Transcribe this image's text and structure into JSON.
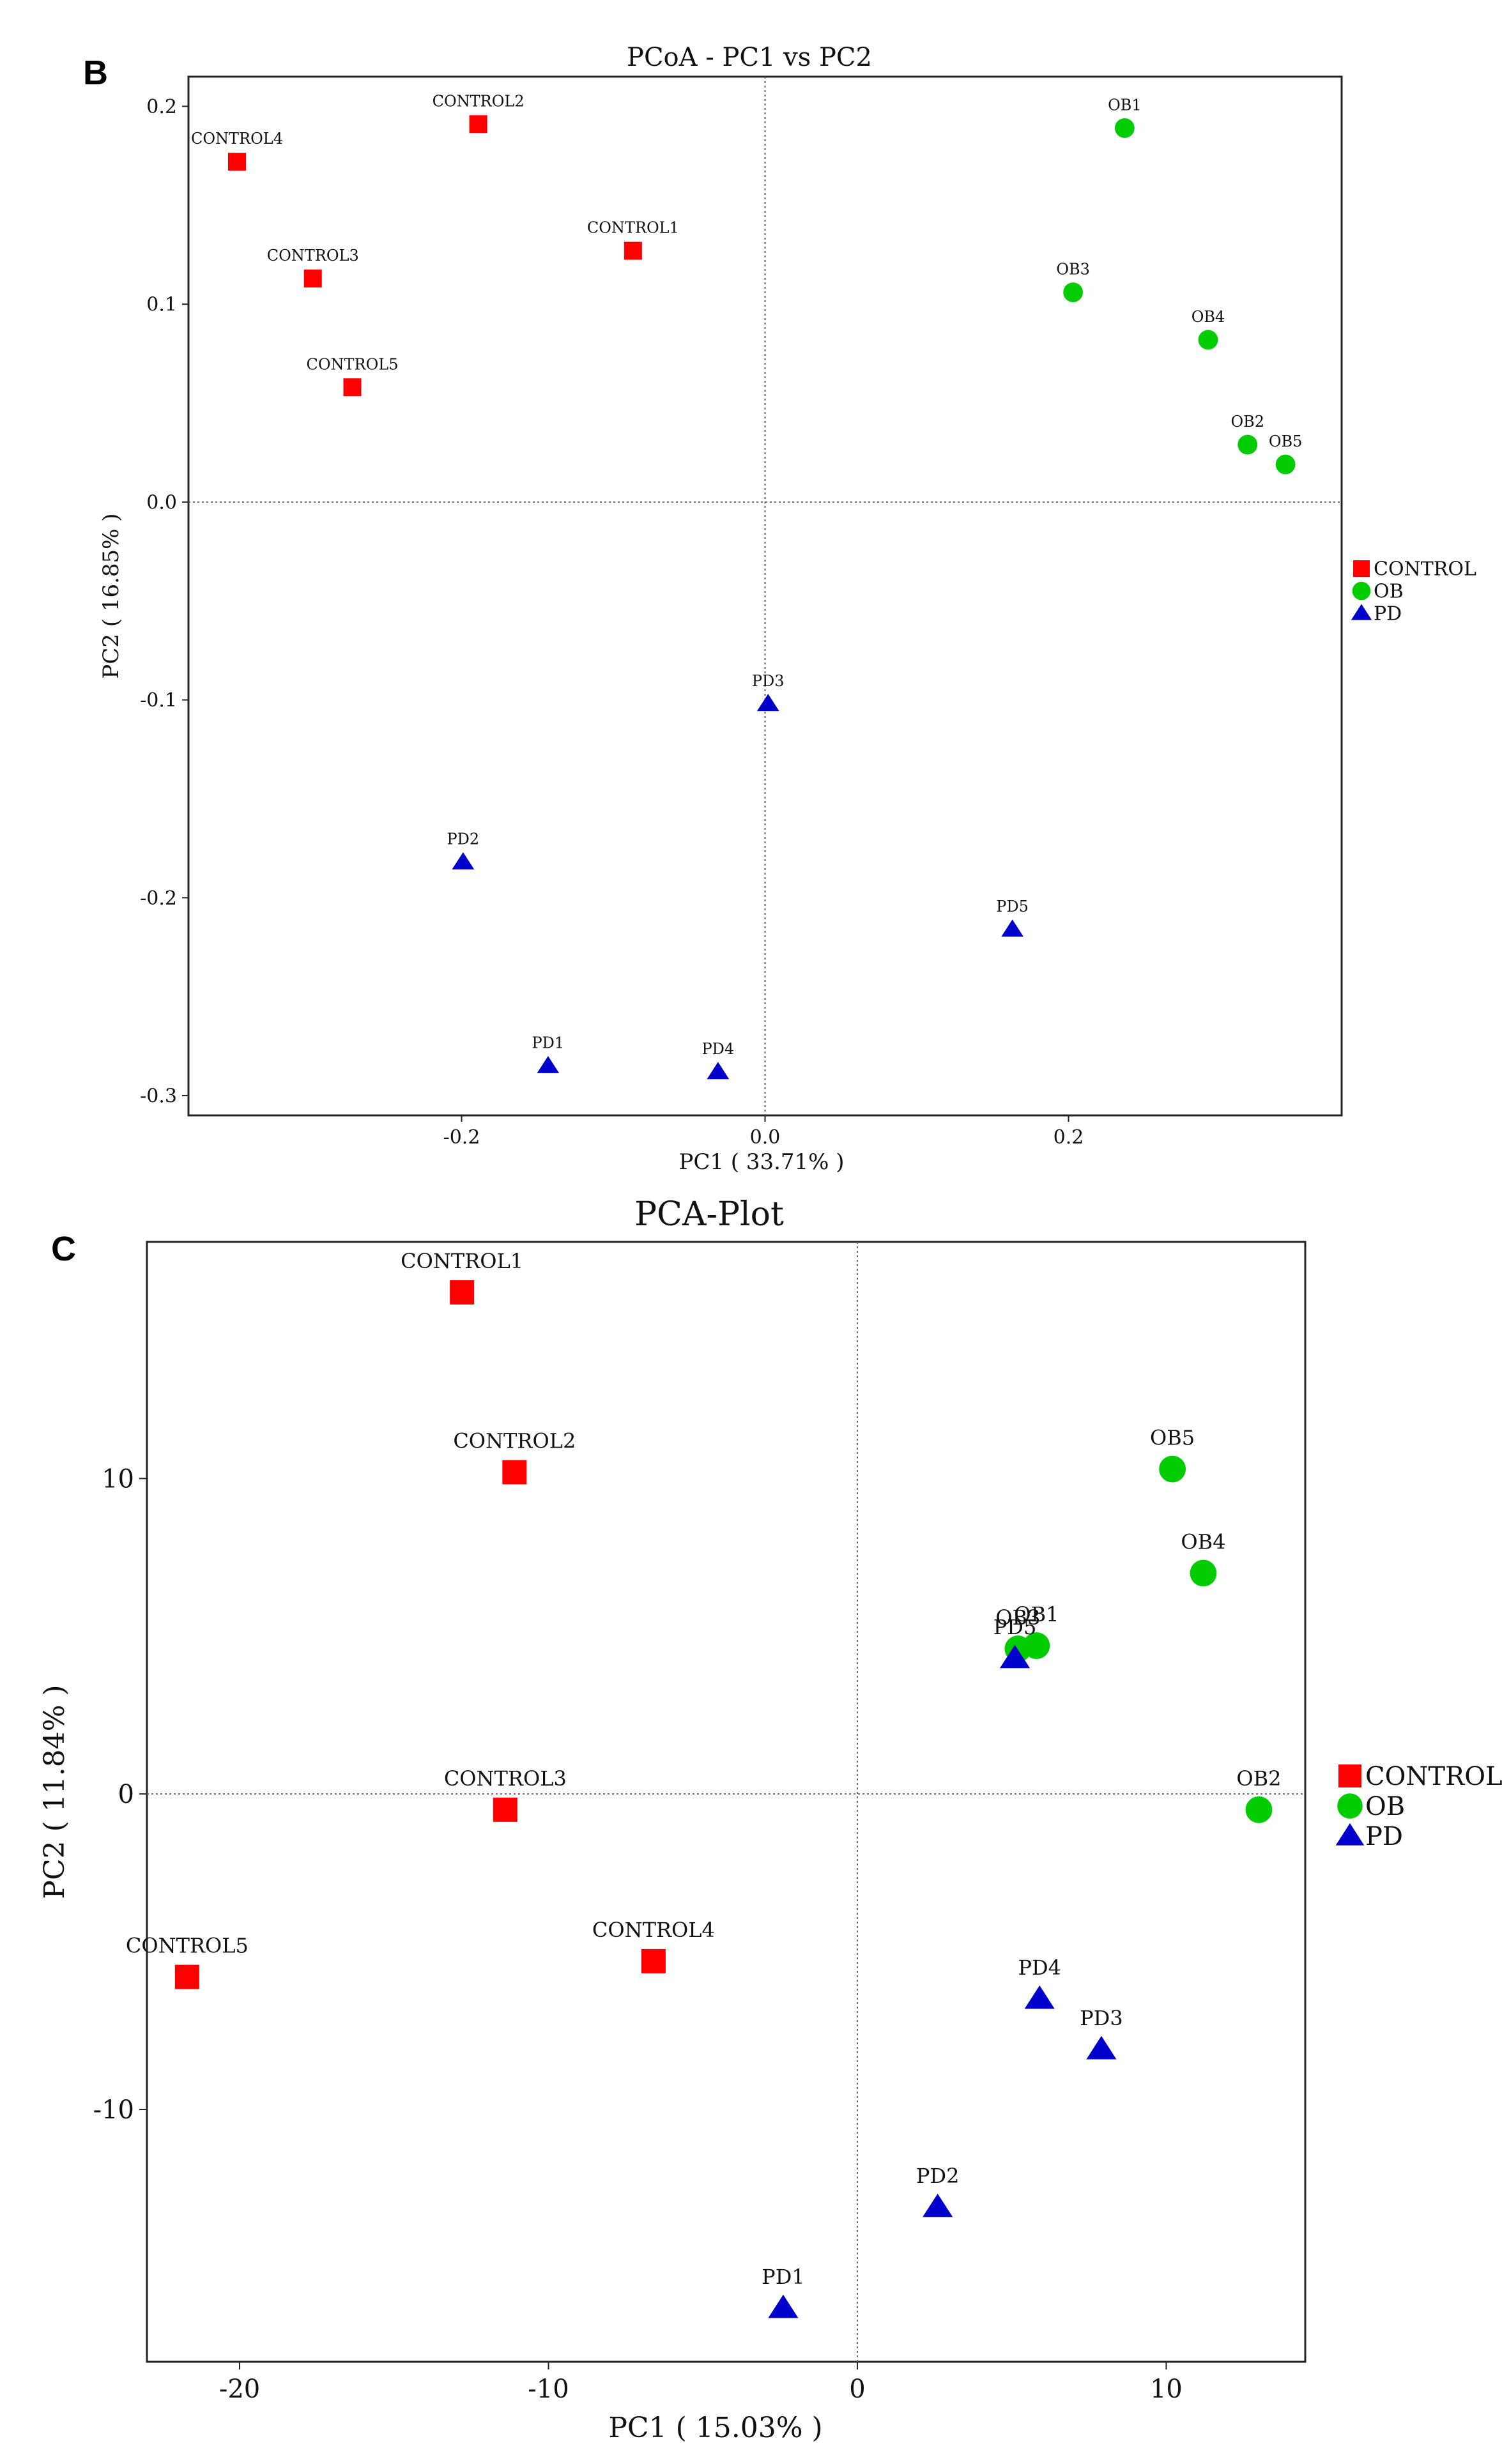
{
  "chart_data": [
    {
      "type": "scatter",
      "panel_label": "B",
      "title": "PCoA - PC1 vs PC2",
      "xlabel": "PC1 ( 33.71% )",
      "ylabel": "PC2 ( 16.85% )",
      "xlim": [
        -0.38,
        0.38
      ],
      "ylim": [
        -0.31,
        0.215
      ],
      "xticks": [
        -0.2,
        0.0,
        0.2
      ],
      "xtick_labels": [
        "-0.2",
        "0.0",
        "0.2"
      ],
      "yticks": [
        -0.3,
        -0.2,
        -0.1,
        0.0,
        0.1,
        0.2
      ],
      "ytick_labels": [
        "-0.3",
        "-0.2",
        "-0.1",
        "0.0",
        "0.1",
        "0.2"
      ],
      "zero_lines": true,
      "legend_position": "right",
      "series": [
        {
          "name": "CONTROL",
          "marker": "square",
          "color": "#ff0000",
          "points": [
            {
              "label": "CONTROL1",
              "x": -0.087,
              "y": 0.127
            },
            {
              "label": "CONTROL2",
              "x": -0.189,
              "y": 0.191
            },
            {
              "label": "CONTROL3",
              "x": -0.298,
              "y": 0.113
            },
            {
              "label": "CONTROL4",
              "x": -0.348,
              "y": 0.172
            },
            {
              "label": "CONTROL5",
              "x": -0.272,
              "y": 0.058
            }
          ]
        },
        {
          "name": "OB",
          "marker": "circle",
          "color": "#00cc00",
          "points": [
            {
              "label": "OB1",
              "x": 0.237,
              "y": 0.189
            },
            {
              "label": "OB2",
              "x": 0.318,
              "y": 0.029
            },
            {
              "label": "OB3",
              "x": 0.203,
              "y": 0.106
            },
            {
              "label": "OB4",
              "x": 0.292,
              "y": 0.082
            },
            {
              "label": "OB5",
              "x": 0.343,
              "y": 0.019
            }
          ]
        },
        {
          "name": "PD",
          "marker": "triangle",
          "color": "#0000cc",
          "points": [
            {
              "label": "PD1",
              "x": -0.143,
              "y": -0.285
            },
            {
              "label": "PD2",
              "x": -0.199,
              "y": -0.182
            },
            {
              "label": "PD3",
              "x": 0.002,
              "y": -0.102
            },
            {
              "label": "PD4",
              "x": -0.031,
              "y": -0.288
            },
            {
              "label": "PD5",
              "x": 0.163,
              "y": -0.216
            }
          ]
        }
      ]
    },
    {
      "type": "scatter",
      "panel_label": "C",
      "title": "PCA-Plot",
      "xlabel": "PC1 ( 15.03% )",
      "ylabel": "PC2 ( 11.84% )",
      "xlim": [
        -23,
        14.5
      ],
      "ylim": [
        -18,
        17.5
      ],
      "xticks": [
        -20,
        -10,
        0,
        10
      ],
      "xtick_labels": [
        "-20",
        "-10",
        "0",
        "10"
      ],
      "yticks": [
        -10,
        0,
        10
      ],
      "ytick_labels": [
        "-10",
        "0",
        "10"
      ],
      "zero_lines": true,
      "legend_position": "right",
      "series": [
        {
          "name": "CONTROL",
          "marker": "square",
          "color": "#ff0000",
          "points": [
            {
              "label": "CONTROL1",
              "x": -12.8,
              "y": 15.9
            },
            {
              "label": "CONTROL2",
              "x": -11.1,
              "y": 10.2
            },
            {
              "label": "CONTROL3",
              "x": -11.4,
              "y": -0.5
            },
            {
              "label": "CONTROL4",
              "x": -6.6,
              "y": -5.3
            },
            {
              "label": "CONTROL5",
              "x": -21.7,
              "y": -5.8
            }
          ]
        },
        {
          "name": "OB",
          "marker": "circle",
          "color": "#00cc00",
          "points": [
            {
              "label": "OB1",
              "x": 5.8,
              "y": 4.7
            },
            {
              "label": "OB2",
              "x": 13.0,
              "y": -0.5
            },
            {
              "label": "OB3",
              "x": 5.2,
              "y": 4.6
            },
            {
              "label": "OB4",
              "x": 11.2,
              "y": 7.0
            },
            {
              "label": "OB5",
              "x": 10.2,
              "y": 10.3
            }
          ]
        },
        {
          "name": "PD",
          "marker": "triangle",
          "color": "#0000cc",
          "points": [
            {
              "label": "PD1",
              "x": -2.4,
              "y": -16.3
            },
            {
              "label": "PD2",
              "x": 2.6,
              "y": -13.1
            },
            {
              "label": "PD3",
              "x": 7.9,
              "y": -8.1
            },
            {
              "label": "PD4",
              "x": 5.9,
              "y": -6.5
            },
            {
              "label": "PD5",
              "x": 5.1,
              "y": 4.3
            }
          ]
        }
      ]
    }
  ]
}
